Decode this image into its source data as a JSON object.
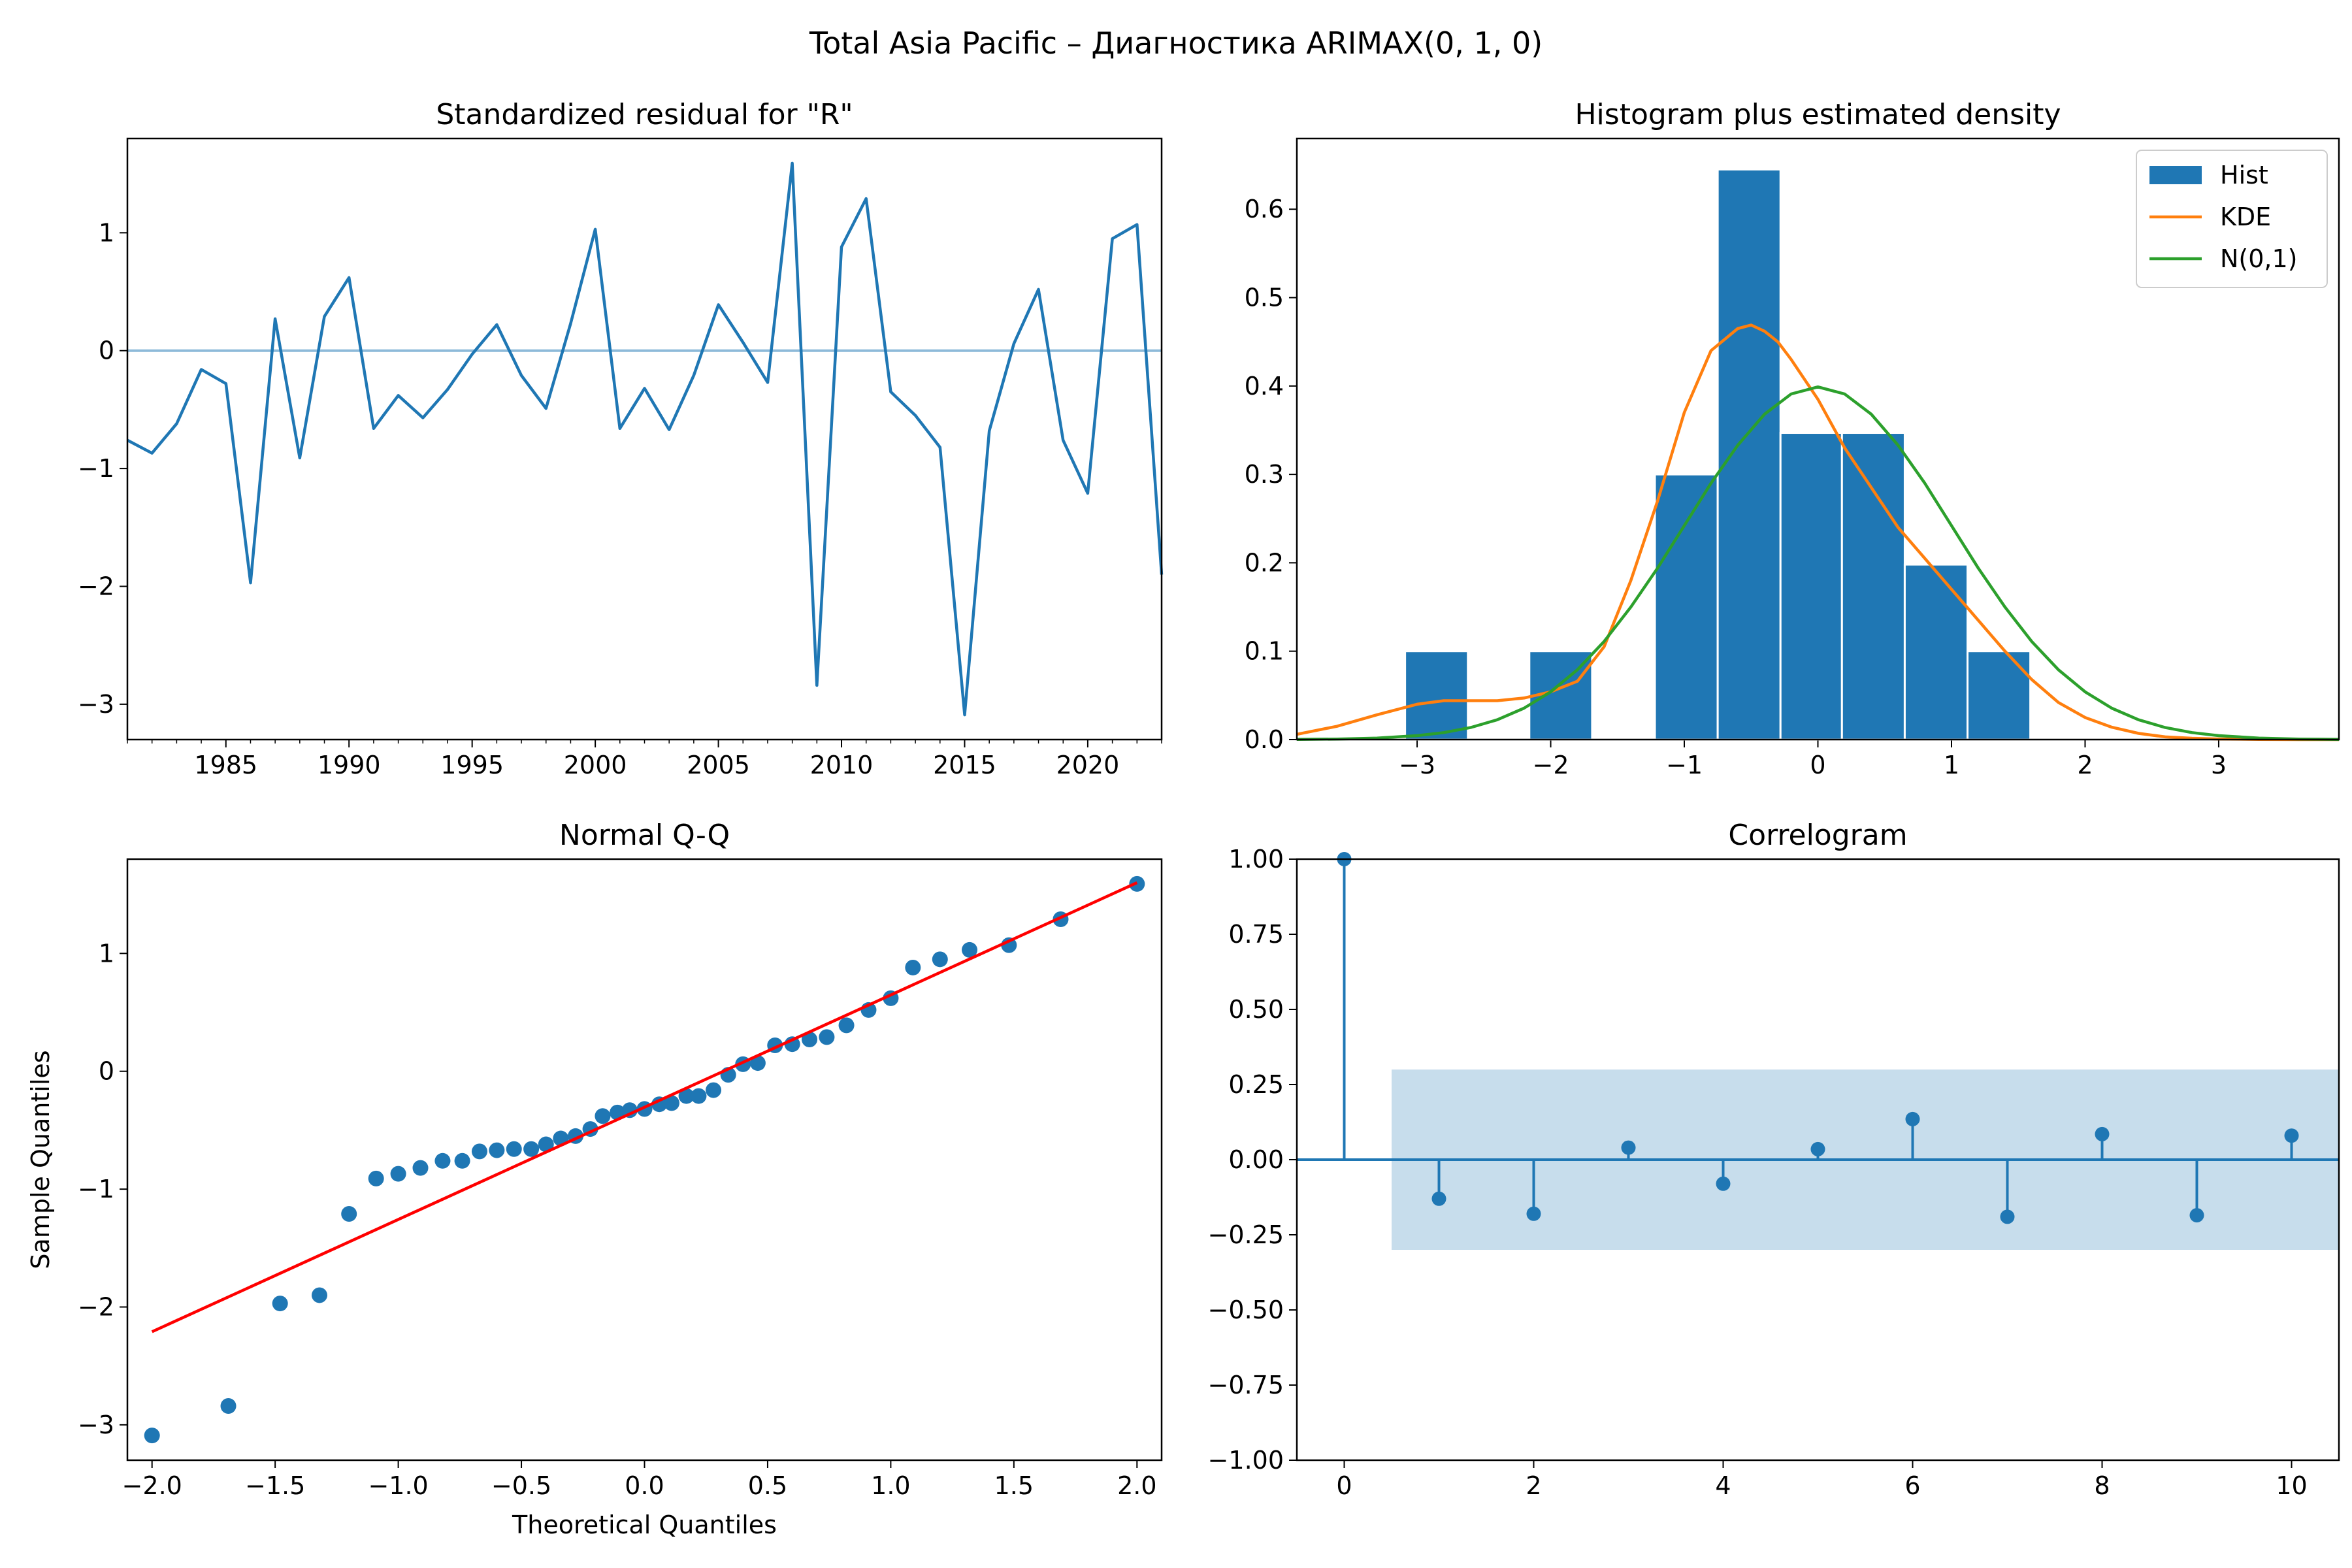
{
  "figure": {
    "suptitle": "Total Asia Pacific – Диагностика ARIMAX(0, 1, 0)",
    "colors": {
      "blue": "#1f77b4",
      "orange": "#ff7f0e",
      "green": "#2ca02c",
      "red": "#ff0000"
    }
  },
  "chart_data": [
    {
      "id": "residual",
      "type": "line",
      "title": "Standardized residual for \"R\"",
      "xlabel": "",
      "ylabel": "",
      "xlim": [
        1981,
        2023
      ],
      "ylim": [
        -3.3,
        1.8
      ],
      "xticks": [
        1985,
        1990,
        1995,
        2000,
        2005,
        2010,
        2015,
        2020
      ],
      "yticks": [
        -3,
        -2,
        -1,
        0,
        1
      ],
      "grid": false,
      "hline": 0,
      "x": [
        1981,
        1982,
        1983,
        1984,
        1985,
        1986,
        1987,
        1988,
        1989,
        1990,
        1991,
        1992,
        1993,
        1994,
        1995,
        1996,
        1997,
        1998,
        1999,
        2000,
        2001,
        2002,
        2003,
        2004,
        2005,
        2006,
        2007,
        2008,
        2009,
        2010,
        2011,
        2012,
        2013,
        2014,
        2015,
        2016,
        2017,
        2018,
        2019,
        2020,
        2021,
        2022,
        2023
      ],
      "y": [
        -0.76,
        -0.87,
        -0.62,
        -0.16,
        -0.28,
        -1.97,
        0.27,
        -0.91,
        0.29,
        0.62,
        -0.66,
        -0.38,
        -0.57,
        -0.33,
        -0.03,
        0.22,
        -0.21,
        -0.49,
        0.23,
        1.03,
        -0.66,
        -0.32,
        -0.67,
        -0.21,
        0.39,
        0.07,
        -0.27,
        1.59,
        -2.84,
        0.88,
        1.29,
        -0.35,
        -0.55,
        -0.82,
        -3.09,
        -0.68,
        0.06,
        0.52,
        -0.76,
        -1.21,
        0.95,
        1.07,
        -1.9
      ]
    },
    {
      "id": "histogram",
      "type": "bar",
      "title": "Histogram plus estimated density",
      "xlabel": "",
      "ylabel": "",
      "xlim": [
        -3.9,
        3.9
      ],
      "ylim": [
        0,
        0.68
      ],
      "xticks": [
        -3,
        -2,
        -1,
        0,
        1,
        2,
        3
      ],
      "yticks": [
        0.0,
        0.1,
        0.2,
        0.3,
        0.4,
        0.5,
        0.6
      ],
      "ytick_labels": [
        "0.0",
        "0.1",
        "0.2",
        "0.3",
        "0.4",
        "0.5",
        "0.6"
      ],
      "legend_position": "top-right",
      "bins": [
        {
          "x0": -3.09,
          "x1": -2.62,
          "value": 0.1
        },
        {
          "x0": -2.62,
          "x1": -2.16,
          "value": 0.0
        },
        {
          "x0": -2.16,
          "x1": -1.69,
          "value": 0.1
        },
        {
          "x0": -1.69,
          "x1": -1.22,
          "value": 0.0
        },
        {
          "x0": -1.22,
          "x1": -0.75,
          "value": 0.3
        },
        {
          "x0": -0.75,
          "x1": -0.28,
          "value": 0.645
        },
        {
          "x0": -0.28,
          "x1": 0.18,
          "value": 0.347
        },
        {
          "x0": 0.18,
          "x1": 0.65,
          "value": 0.347
        },
        {
          "x0": 0.65,
          "x1": 1.12,
          "value": 0.198
        },
        {
          "x0": 1.12,
          "x1": 1.59,
          "value": 0.1
        }
      ],
      "series": [
        {
          "name": "KDE",
          "x": [
            -3.9,
            -3.6,
            -3.3,
            -3.0,
            -2.8,
            -2.6,
            -2.4,
            -2.2,
            -2.0,
            -1.8,
            -1.6,
            -1.4,
            -1.2,
            -1.0,
            -0.8,
            -0.6,
            -0.5,
            -0.4,
            -0.3,
            -0.2,
            0.0,
            0.2,
            0.4,
            0.6,
            0.8,
            1.0,
            1.2,
            1.4,
            1.6,
            1.8,
            2.0,
            2.2,
            2.4,
            2.6,
            2.8,
            3.0,
            3.3,
            3.6,
            3.9
          ],
          "y": [
            0.006,
            0.015,
            0.028,
            0.04,
            0.044,
            0.044,
            0.044,
            0.047,
            0.054,
            0.066,
            0.105,
            0.18,
            0.27,
            0.37,
            0.44,
            0.465,
            0.469,
            0.462,
            0.45,
            0.43,
            0.385,
            0.33,
            0.285,
            0.24,
            0.205,
            0.17,
            0.135,
            0.1,
            0.068,
            0.042,
            0.025,
            0.014,
            0.007,
            0.003,
            0.0015,
            0.0007,
            0.0002,
            0.0,
            0.0
          ]
        },
        {
          "name": "N(0,1)",
          "x": [
            -3.9,
            -3.6,
            -3.3,
            -3.0,
            -2.8,
            -2.6,
            -2.4,
            -2.2,
            -2.0,
            -1.8,
            -1.6,
            -1.4,
            -1.2,
            -1.0,
            -0.8,
            -0.6,
            -0.4,
            -0.2,
            0.0,
            0.2,
            0.4,
            0.6,
            0.8,
            1.0,
            1.2,
            1.4,
            1.6,
            1.8,
            2.0,
            2.2,
            2.4,
            2.6,
            2.8,
            3.0,
            3.3,
            3.6,
            3.9
          ],
          "y": [
            0.0002,
            0.0006,
            0.0017,
            0.0044,
            0.0079,
            0.0136,
            0.0224,
            0.0355,
            0.054,
            0.079,
            0.111,
            0.15,
            0.194,
            0.242,
            0.29,
            0.333,
            0.368,
            0.391,
            0.399,
            0.391,
            0.368,
            0.333,
            0.29,
            0.242,
            0.194,
            0.15,
            0.111,
            0.079,
            0.054,
            0.0355,
            0.0224,
            0.0136,
            0.0079,
            0.0044,
            0.0017,
            0.0006,
            0.0002
          ]
        }
      ],
      "legend": [
        "Hist",
        "KDE",
        "N(0,1)"
      ]
    },
    {
      "id": "qq",
      "type": "scatter",
      "title": "Normal Q-Q",
      "xlabel": "Theoretical Quantiles",
      "ylabel": "Sample Quantiles",
      "xlim": [
        -2.1,
        2.1
      ],
      "ylim": [
        -3.3,
        1.8
      ],
      "xticks": [
        -2.0,
        -1.5,
        -1.0,
        -0.5,
        0.0,
        0.5,
        1.0,
        1.5,
        2.0
      ],
      "xtick_labels": [
        "−2.0",
        "−1.5",
        "−1.0",
        "−0.5",
        "0.0",
        "0.5",
        "1.0",
        "1.5",
        "2.0"
      ],
      "yticks": [
        -3,
        -2,
        -1,
        0,
        1
      ],
      "reference_line": {
        "x": [
          -2.0,
          2.0
        ],
        "y": [
          -2.21,
          1.6
        ]
      },
      "x": [
        -2.0,
        -1.69,
        -1.48,
        -1.32,
        -1.2,
        -1.09,
        -1.0,
        -0.91,
        -0.82,
        -0.74,
        -0.67,
        -0.6,
        -0.53,
        -0.46,
        -0.4,
        -0.34,
        -0.28,
        -0.22,
        -0.17,
        -0.11,
        -0.06,
        0.0,
        0.06,
        0.11,
        0.17,
        0.22,
        0.28,
        0.34,
        0.4,
        0.46,
        0.53,
        0.6,
        0.67,
        0.74,
        0.82,
        0.91,
        1.0,
        1.09,
        1.2,
        1.32,
        1.48,
        1.69,
        2.0
      ],
      "y": [
        -3.09,
        -2.84,
        -1.97,
        -1.9,
        -1.21,
        -0.91,
        -0.87,
        -0.82,
        -0.76,
        -0.76,
        -0.68,
        -0.67,
        -0.66,
        -0.66,
        -0.62,
        -0.57,
        -0.55,
        -0.49,
        -0.38,
        -0.35,
        -0.33,
        -0.32,
        -0.28,
        -0.27,
        -0.21,
        -0.21,
        -0.16,
        -0.03,
        0.06,
        0.07,
        0.22,
        0.23,
        0.27,
        0.29,
        0.39,
        0.52,
        0.62,
        0.88,
        0.95,
        1.03,
        1.07,
        1.29,
        1.59
      ]
    },
    {
      "id": "correlogram",
      "type": "bar",
      "title": "Correlogram",
      "xlabel": "",
      "ylabel": "",
      "xlim": [
        -0.5,
        10.5
      ],
      "ylim": [
        -1.0,
        1.0
      ],
      "xticks": [
        0,
        2,
        4,
        6,
        8,
        10
      ],
      "yticks": [
        -1.0,
        -0.75,
        -0.5,
        -0.25,
        0.0,
        0.25,
        0.5,
        0.75,
        1.0
      ],
      "ytick_labels": [
        "−1.00",
        "−0.75",
        "−0.50",
        "−0.25",
        "0.00",
        "0.25",
        "0.50",
        "0.75",
        "1.00"
      ],
      "confidence_band": {
        "x": [
          0.5,
          10.5
        ],
        "lower": -0.3,
        "upper": 0.3
      },
      "lags": [
        0,
        1,
        2,
        3,
        4,
        5,
        6,
        7,
        8,
        9,
        10
      ],
      "values": [
        1.0,
        -0.13,
        -0.18,
        0.04,
        -0.08,
        0.035,
        0.135,
        -0.19,
        0.085,
        -0.185,
        0.08
      ]
    }
  ]
}
